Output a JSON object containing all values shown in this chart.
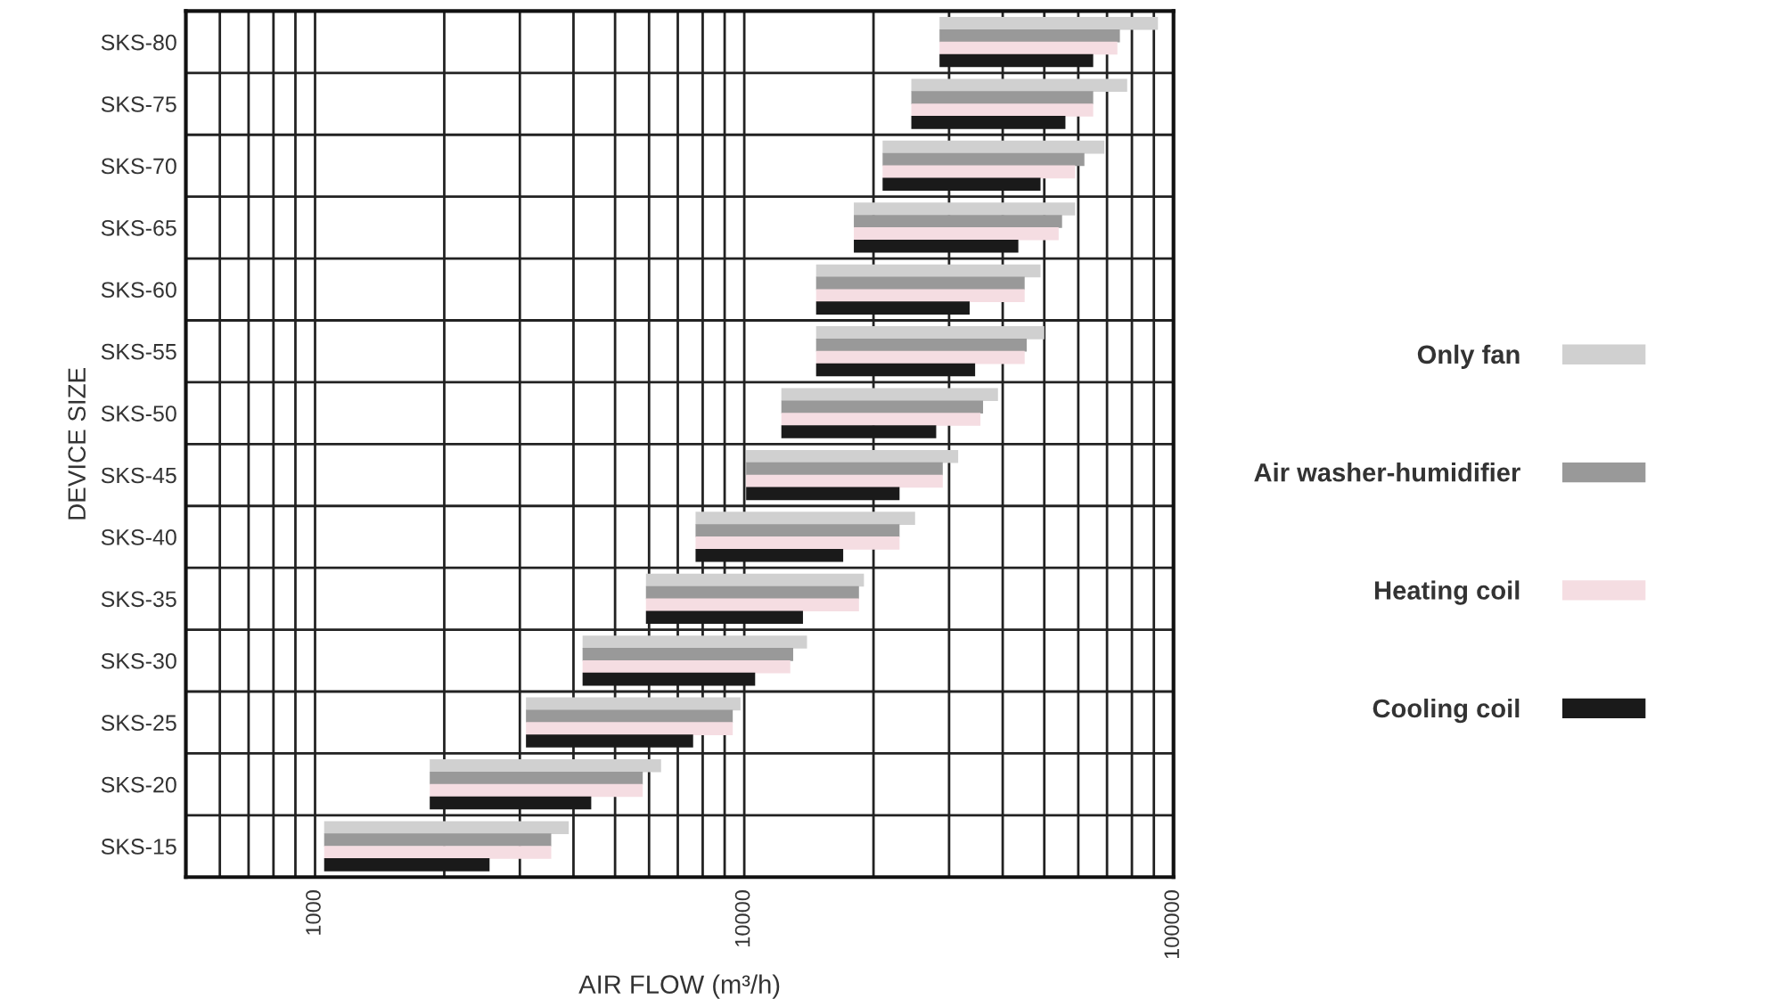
{
  "chart_data": {
    "type": "bar",
    "orientation": "horizontal",
    "xlabel": "AIR FLOW (m³/h)",
    "ylabel": "DEVICE SIZE",
    "categories": [
      "SKS-80",
      "SKS-75",
      "SKS-70",
      "SKS-65",
      "SKS-60",
      "SKS-55",
      "SKS-50",
      "SKS-45",
      "SKS-40",
      "SKS-35",
      "SKS-30",
      "SKS-25",
      "SKS-20",
      "SKS-15"
    ],
    "log": "x",
    "xlim": [
      500,
      100000
    ],
    "xticks": [
      {
        "value": 600,
        "label": null
      },
      {
        "value": 700,
        "label": null
      },
      {
        "value": 800,
        "label": null
      },
      {
        "value": 900,
        "label": null
      },
      1000,
      {
        "value": 2000,
        "label": null
      },
      {
        "value": 3000,
        "label": null
      },
      {
        "value": 4000,
        "label": null
      },
      {
        "value": 5000,
        "label": null
      },
      {
        "value": 6000,
        "label": null
      },
      {
        "value": 7000,
        "label": null
      },
      {
        "value": 8000,
        "label": null
      },
      {
        "value": 9000,
        "label": null
      },
      10000,
      {
        "value": 20000,
        "label": null
      },
      {
        "value": 30000,
        "label": null
      },
      {
        "value": 40000,
        "label": null
      },
      {
        "value": 50000,
        "label": null
      },
      {
        "value": 60000,
        "label": null
      },
      {
        "value": 70000,
        "label": null
      },
      {
        "value": 80000,
        "label": null
      },
      {
        "value": 90000,
        "label": null
      },
      100000
    ],
    "grid": true,
    "legend": "right",
    "series": [
      {
        "name": "Only fan",
        "color": "#d0d0d0",
        "base": [
          28500,
          24500,
          21000,
          18000,
          14700,
          14700,
          12200,
          10100,
          7700,
          5900,
          4200,
          3100,
          1850,
          1050
        ],
        "values": [
          63500,
          53500,
          48000,
          41000,
          34300,
          35300,
          26800,
          21400,
          17300,
          13100,
          9800,
          6700,
          4550,
          2850
        ]
      },
      {
        "name": "Air washer-humidifier",
        "color": "#999999",
        "base": [
          28500,
          24500,
          21000,
          18000,
          14700,
          14700,
          12200,
          10100,
          7700,
          5900,
          4200,
          3100,
          1850,
          1050
        ],
        "values": [
          46500,
          40500,
          41000,
          37000,
          30300,
          30800,
          23800,
          18900,
          15300,
          12600,
          8800,
          6300,
          3950,
          2500
        ]
      },
      {
        "name": "Heating coil",
        "color": "#f5dde2",
        "base": [
          28500,
          24500,
          21000,
          18000,
          14700,
          14700,
          12200,
          10100,
          7700,
          5900,
          4200,
          3100,
          1850,
          1050
        ],
        "values": [
          45500,
          40500,
          38000,
          36000,
          30300,
          30300,
          23300,
          18900,
          15300,
          12600,
          8600,
          6300,
          3950,
          2500
        ]
      },
      {
        "name": "Cooling coil",
        "color": "#1a1a1a",
        "base": [
          28500,
          24500,
          21000,
          18000,
          14700,
          14700,
          12200,
          10100,
          7700,
          5900,
          4200,
          3100,
          1850,
          1050
        ],
        "values": [
          36500,
          31500,
          28000,
          25500,
          18800,
          19800,
          15800,
          12900,
          9300,
          7800,
          6400,
          4500,
          2550,
          1500
        ]
      }
    ]
  }
}
